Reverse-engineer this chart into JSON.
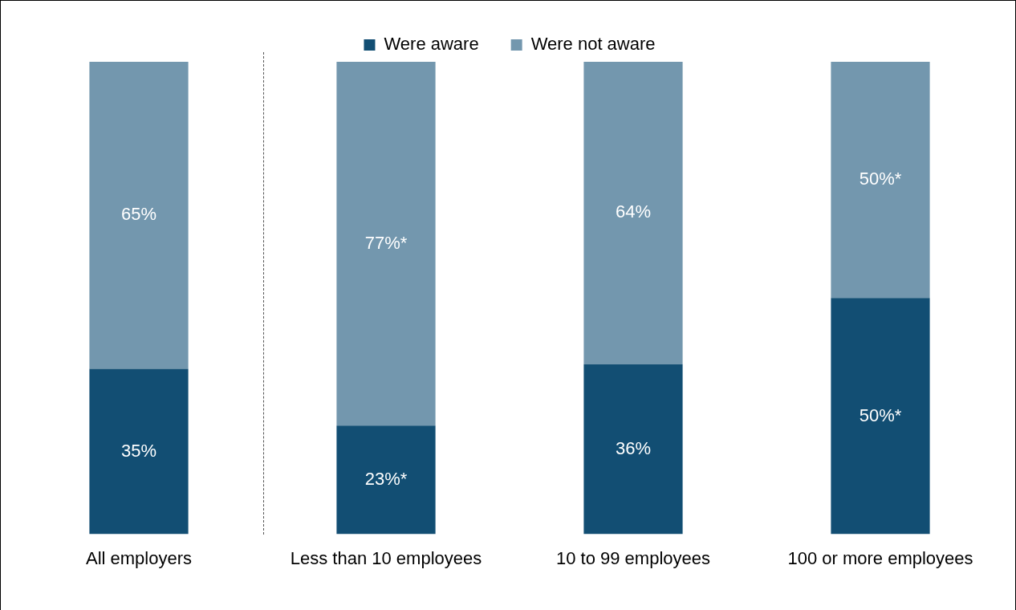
{
  "chart_data": {
    "type": "bar",
    "stacked": true,
    "categories": [
      "All employers",
      "Less than 10 employees",
      "10 to 99 employees",
      "100 or more employees"
    ],
    "series": [
      {
        "name": "Were aware",
        "color": "#124e73",
        "values": [
          35,
          23,
          36,
          50
        ],
        "value_labels": [
          "35%",
          "23%*",
          "36%",
          "50%*"
        ]
      },
      {
        "name": "Were not aware",
        "color": "#7397ae",
        "values": [
          65,
          77,
          64,
          50
        ],
        "value_labels": [
          "65%",
          "77%*",
          "64%",
          "50%*"
        ]
      }
    ],
    "tick_labels": "x",
    "grid": false,
    "legend": "top"
  }
}
